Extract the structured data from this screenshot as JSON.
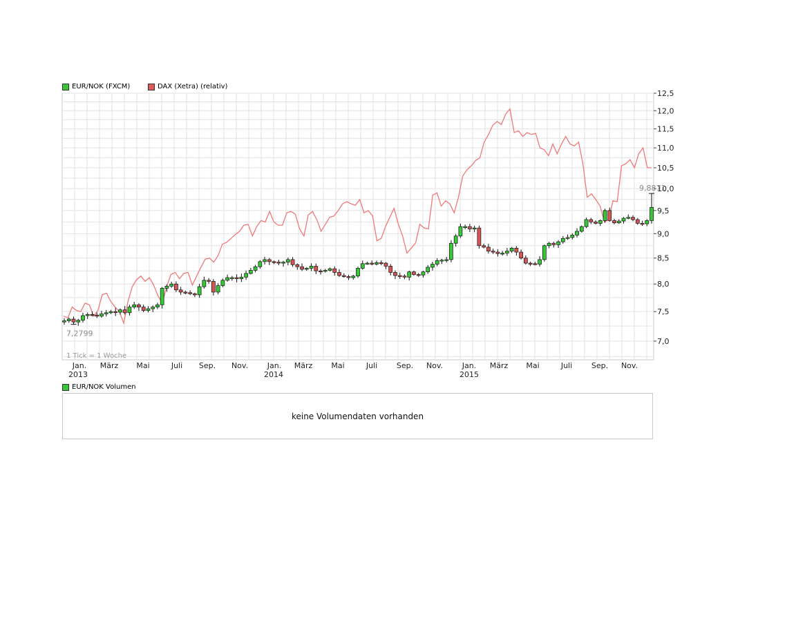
{
  "legend": {
    "eur": {
      "label": "EUR/NOK (FXCM)",
      "color": "#37c837"
    },
    "dax": {
      "label": "DAX (Xetra) (relativ)",
      "color": "#e05a5a"
    }
  },
  "volume": {
    "legend_label": "EUR/NOK Volumen",
    "message": "keine Volumendaten vorhanden"
  },
  "chart_data": {
    "type": "candlestick",
    "tick_note": "1 Tick = 1 Woche",
    "y_ticks": [
      "7,0",
      "7,5",
      "8,0",
      "8,5",
      "9,0",
      "9,5",
      "10,0",
      "10,5",
      "11,0",
      "11,5",
      "12,0",
      "12,5"
    ],
    "y_scale": "log",
    "y_range": [
      6.7,
      12.5
    ],
    "x_month_labels": [
      "Jan.",
      "März",
      "Mai",
      "Juli",
      "Sep.",
      "Nov.",
      "Jan.",
      "März",
      "Mai",
      "Juli",
      "Sep.",
      "Nov.",
      "Jan.",
      "März",
      "Mai",
      "Juli",
      "Sep.",
      "Nov."
    ],
    "x_year_labels": [
      "2013",
      "2014",
      "2015"
    ],
    "annotations": {
      "low": "7,2799",
      "high": "9,8871"
    },
    "eur_nok_close": [
      7.34,
      7.37,
      7.32,
      7.35,
      7.43,
      7.45,
      7.44,
      7.42,
      7.46,
      7.48,
      7.5,
      7.49,
      7.53,
      7.48,
      7.58,
      7.62,
      7.58,
      7.52,
      7.55,
      7.58,
      7.62,
      7.92,
      7.96,
      8.0,
      7.89,
      7.85,
      7.84,
      7.82,
      7.8,
      7.95,
      8.07,
      8.05,
      7.85,
      7.97,
      8.07,
      8.12,
      8.12,
      8.1,
      8.13,
      8.2,
      8.26,
      8.33,
      8.43,
      8.47,
      8.43,
      8.42,
      8.4,
      8.42,
      8.47,
      8.37,
      8.33,
      8.28,
      8.3,
      8.34,
      8.25,
      8.24,
      8.26,
      8.29,
      8.22,
      8.16,
      8.14,
      8.12,
      8.15,
      8.3,
      8.39,
      8.4,
      8.38,
      8.41,
      8.4,
      8.34,
      8.22,
      8.16,
      8.15,
      8.13,
      8.23,
      8.18,
      8.17,
      8.23,
      8.32,
      8.38,
      8.45,
      8.46,
      8.47,
      8.8,
      8.95,
      9.15,
      9.15,
      9.1,
      9.12,
      8.75,
      8.72,
      8.64,
      8.62,
      8.59,
      8.6,
      8.64,
      8.7,
      8.62,
      8.5,
      8.4,
      8.39,
      8.38,
      8.47,
      8.75,
      8.8,
      8.77,
      8.83,
      8.9,
      8.92,
      8.97,
      9.05,
      9.15,
      9.3,
      9.25,
      9.22,
      9.28,
      9.5,
      9.28,
      9.23,
      9.27,
      9.33,
      9.35,
      9.3,
      9.22,
      9.21,
      9.28,
      9.57
    ],
    "dax_relative": [
      7.42,
      7.39,
      7.58,
      7.52,
      7.5,
      7.65,
      7.62,
      7.42,
      7.52,
      7.8,
      7.83,
      7.68,
      7.58,
      7.5,
      7.3,
      7.68,
      7.95,
      8.08,
      8.15,
      8.05,
      8.12,
      7.98,
      7.78,
      7.65,
      7.95,
      8.18,
      8.22,
      8.1,
      8.2,
      8.22,
      7.98,
      8.15,
      8.32,
      8.48,
      8.5,
      8.42,
      8.55,
      8.78,
      8.82,
      8.9,
      8.98,
      9.05,
      9.18,
      9.2,
      8.95,
      9.15,
      9.28,
      9.25,
      9.48,
      9.25,
      9.18,
      9.18,
      9.45,
      9.48,
      9.42,
      9.1,
      8.95,
      9.4,
      9.48,
      9.3,
      9.05,
      9.2,
      9.35,
      9.38,
      9.5,
      9.65,
      9.7,
      9.65,
      9.62,
      9.75,
      9.45,
      9.5,
      9.38,
      8.85,
      8.9,
      9.15,
      9.35,
      9.55,
      9.2,
      8.95,
      8.6,
      8.7,
      8.8,
      9.2,
      9.12,
      9.1,
      9.85,
      9.9,
      9.6,
      9.72,
      9.65,
      9.45,
      9.8,
      10.3,
      10.45,
      10.55,
      10.68,
      10.75,
      11.15,
      11.35,
      11.6,
      11.7,
      11.62,
      11.9,
      12.05,
      11.4,
      11.45,
      11.3,
      11.4,
      11.35,
      11.38,
      11.0,
      10.95,
      10.8,
      11.1,
      10.85,
      11.1,
      11.3,
      11.1,
      11.05,
      11.15,
      10.6,
      9.8,
      9.88,
      9.75,
      9.6,
      9.25,
      9.3,
      9.72,
      9.7,
      10.55,
      10.6,
      10.7,
      10.5,
      10.85,
      11.0,
      10.5,
      10.5
    ]
  }
}
